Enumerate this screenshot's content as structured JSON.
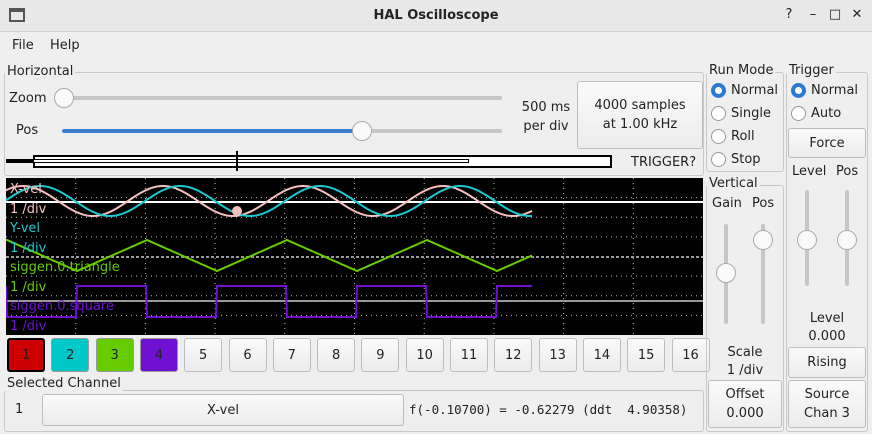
{
  "window": {
    "title": "HAL Oscilloscope"
  },
  "menu": [
    "File",
    "Help"
  ],
  "horizontal": {
    "label": "Horizontal",
    "zoom_label": "Zoom",
    "pos_label": "Pos",
    "zoom_value": 0,
    "pos_value": 0.6,
    "rate_line1": "500 ms",
    "rate_line2": "per div",
    "samples_line1": "4000 samples",
    "samples_line2": "at 1.00 kHz",
    "trigger_status": "TRIGGER?"
  },
  "run_mode": {
    "label": "Run Mode",
    "options": [
      "Normal",
      "Single",
      "Roll",
      "Stop"
    ],
    "selected": "Normal"
  },
  "trigger": {
    "label": "Trigger",
    "options": [
      "Normal",
      "Auto"
    ],
    "selected": "Normal",
    "force": "Force",
    "level_label": "Level",
    "pos_label": "Pos",
    "level_title": "Level",
    "level_value": "0.000",
    "edge": "Rising",
    "source_line1": "Source",
    "source_line2": "Chan 3"
  },
  "vertical": {
    "label": "Vertical",
    "gain_label": "Gain",
    "pos_label": "Pos",
    "scale_title": "Scale",
    "scale_value": "1 /div",
    "offset_title": "Offset",
    "offset_value": "0.000"
  },
  "traces": [
    {
      "name": "X-vel",
      "scale": "1 /div",
      "color": "#f5c0c0"
    },
    {
      "name": "Y-vel",
      "scale": "1 /div",
      "color": "#1ac8d0"
    },
    {
      "name": "siggen.0.triangle",
      "scale": "1 /div",
      "color": "#66cc00"
    },
    {
      "name": "siggen.0.square",
      "scale": "1 /div",
      "color": "#7010d0"
    }
  ],
  "channels": [
    {
      "label": "1",
      "color": "#cc0000"
    },
    {
      "label": "2",
      "color": "#00c8c8"
    },
    {
      "label": "3",
      "color": "#66cc00"
    },
    {
      "label": "4",
      "color": "#7010d0"
    },
    {
      "label": "5"
    },
    {
      "label": "6"
    },
    {
      "label": "7"
    },
    {
      "label": "8"
    },
    {
      "label": "9"
    },
    {
      "label": "10"
    },
    {
      "label": "11"
    },
    {
      "label": "12"
    },
    {
      "label": "13"
    },
    {
      "label": "14"
    },
    {
      "label": "15"
    },
    {
      "label": "16"
    }
  ],
  "selected_channel": {
    "label": "Selected Channel",
    "number": "1",
    "name": "X-vel",
    "readout": "f(-0.10700) = -0.62279 (ddt  4.90358)"
  }
}
